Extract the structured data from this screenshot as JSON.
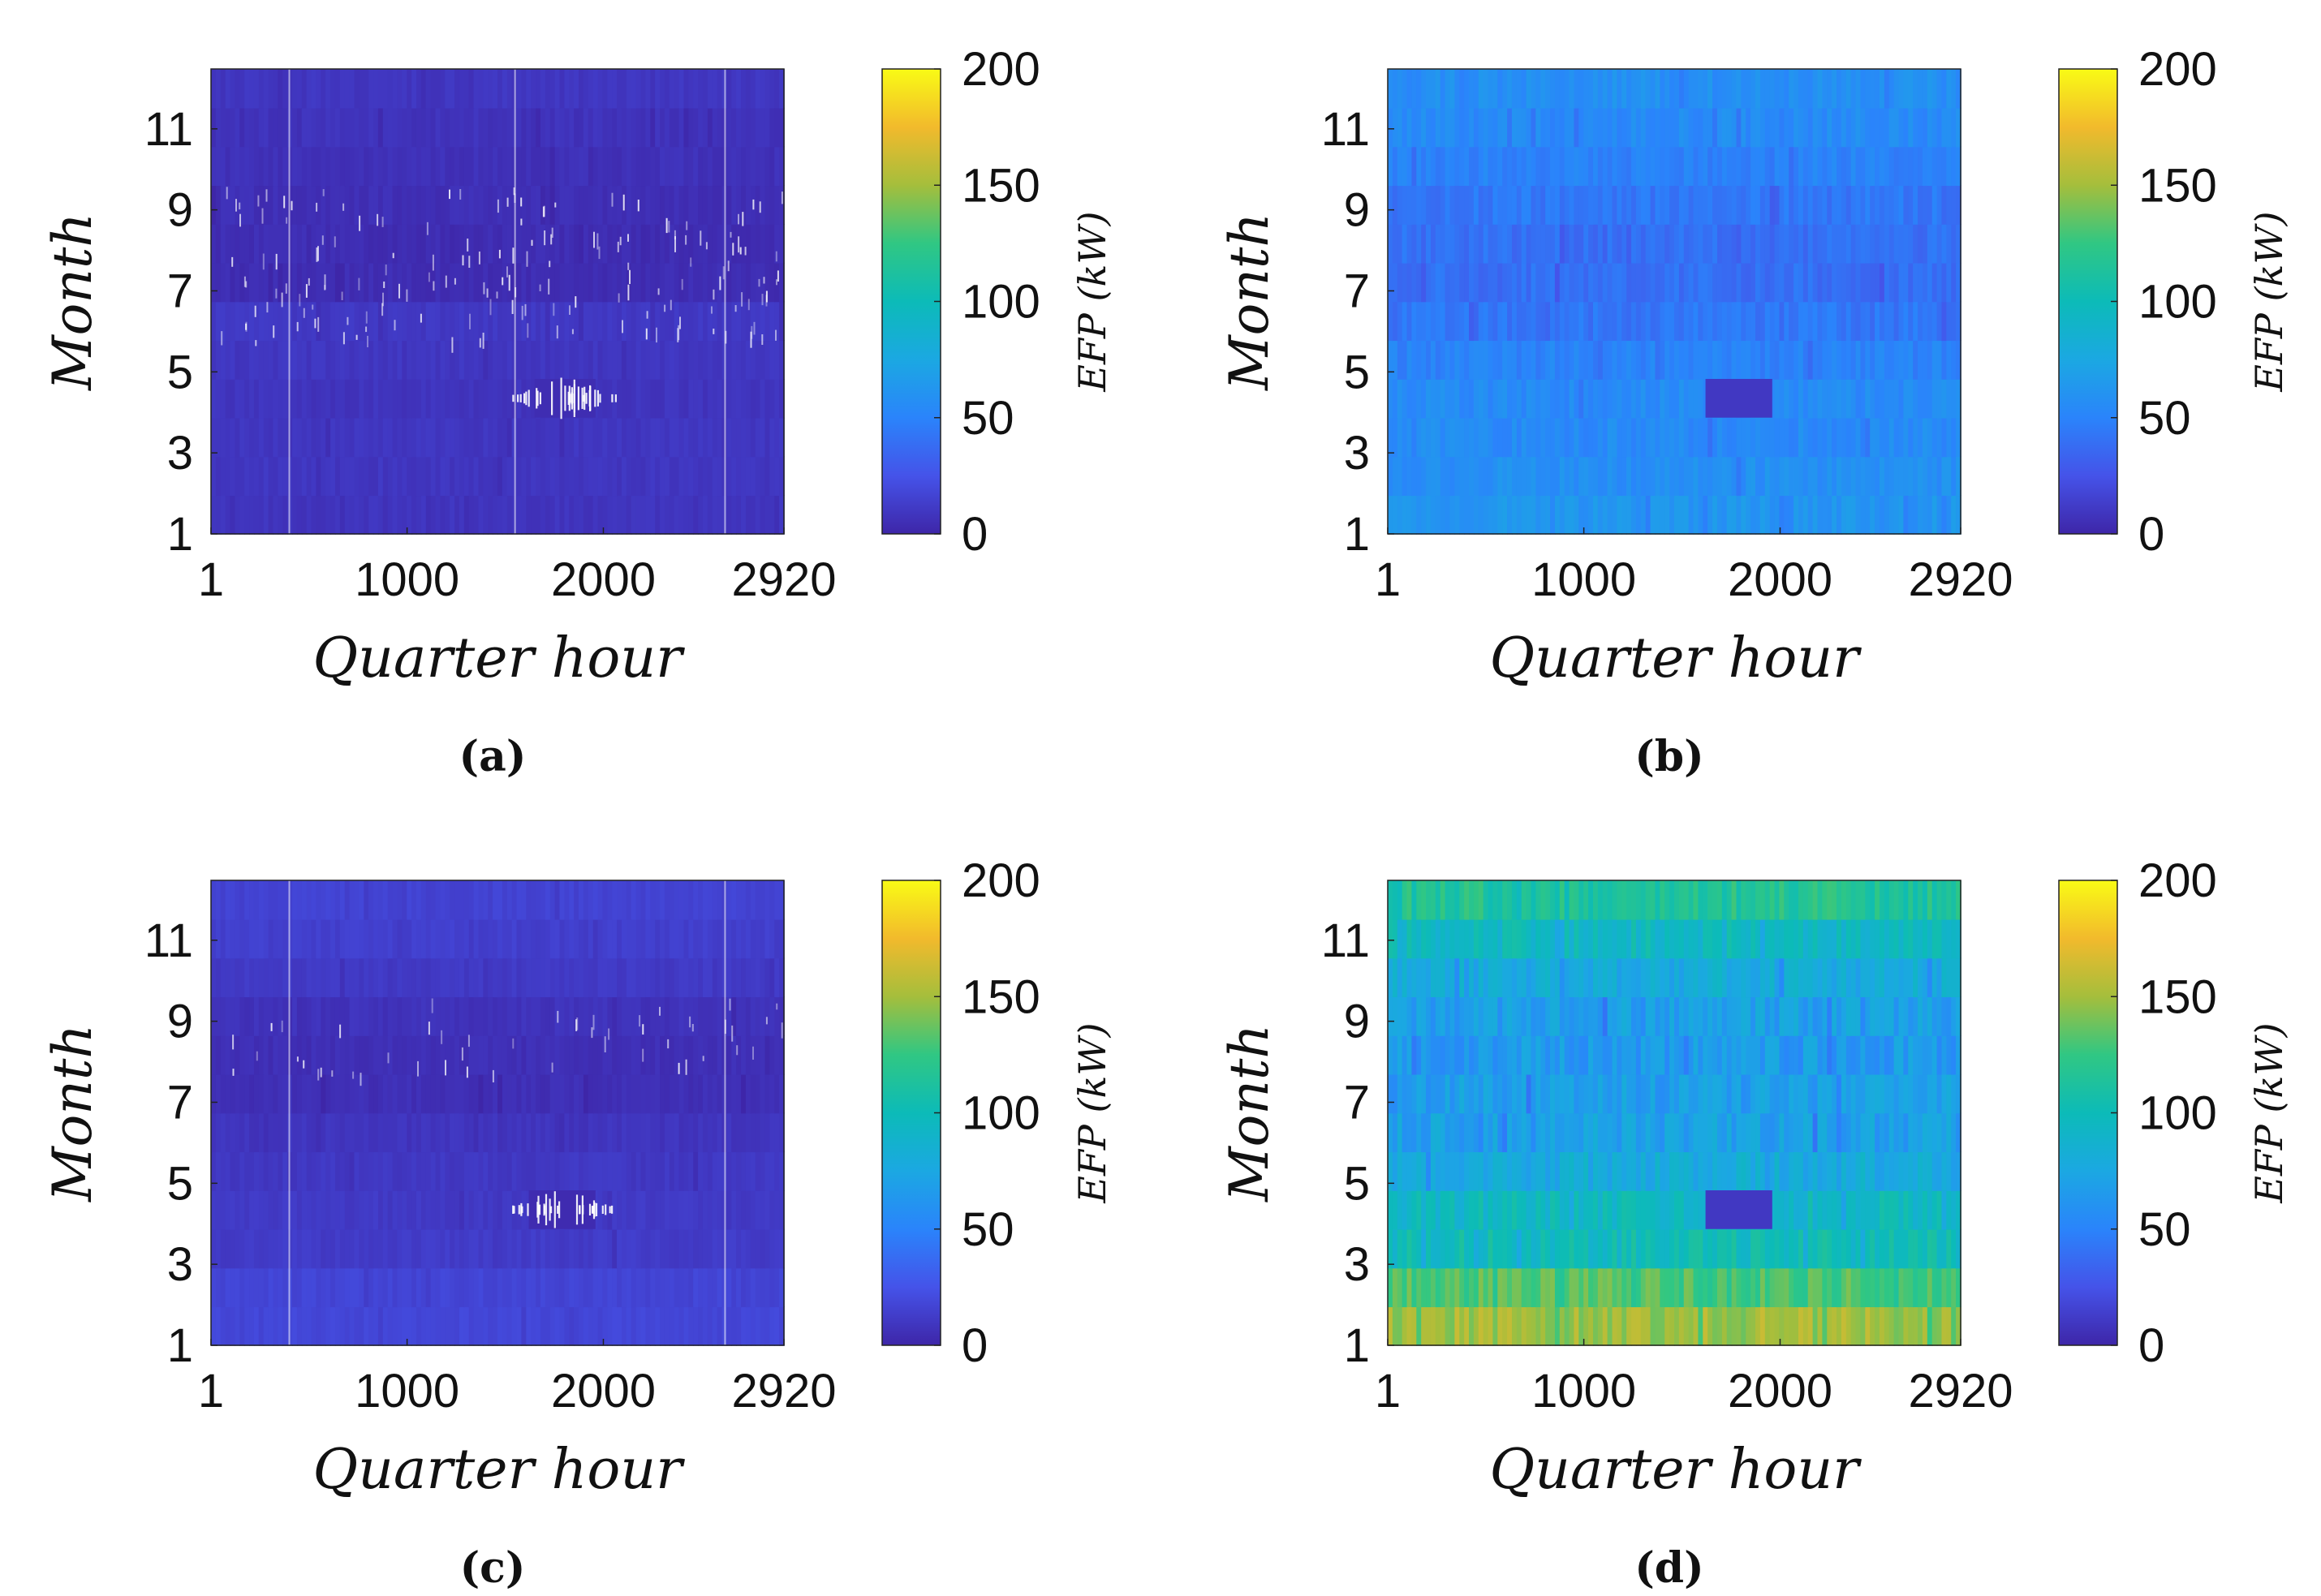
{
  "chart_data": [
    {
      "panel": "(a)",
      "type": "heatmap",
      "xlabel": "Quarter hour",
      "ylabel": "Month",
      "xticks": [
        "1",
        "1000",
        "2000",
        "2920"
      ],
      "xlim": [
        1,
        2920
      ],
      "yticks": [
        "1",
        "3",
        "5",
        "7",
        "9",
        "11"
      ],
      "ylim": [
        1,
        12
      ],
      "colorbar": {
        "label": "EFP (kW)",
        "ticks": [
          "0",
          "50",
          "100",
          "150",
          "200"
        ],
        "range": [
          0,
          200
        ]
      },
      "month_mean_kw": [
        8,
        9,
        9,
        8,
        9,
        10,
        4,
        4,
        5,
        6,
        7,
        9
      ],
      "variation": 2.5,
      "blank_hours": [
        400,
        1550,
        2620
      ],
      "sparkles": {
        "months": [
          6,
          7,
          8,
          9
        ],
        "count": 180
      },
      "anomaly": {
        "month": 4,
        "x_start": 1650,
        "x_end": 1960,
        "value": 4
      }
    },
    {
      "panel": "(b)",
      "type": "heatmap",
      "xlabel": "Quarter hour",
      "ylabel": "Month",
      "xticks": [
        "1",
        "1000",
        "2000",
        "2920"
      ],
      "xlim": [
        1,
        2920
      ],
      "yticks": [
        "1",
        "3",
        "5",
        "7",
        "9",
        "11"
      ],
      "ylim": [
        1,
        12
      ],
      "colorbar": {
        "label": "EFP (kW)",
        "ticks": [
          "0",
          "50",
          "100",
          "150",
          "200"
        ],
        "range": [
          0,
          200
        ]
      },
      "month_mean_kw": [
        62,
        58,
        55,
        55,
        50,
        43,
        40,
        40,
        44,
        50,
        55,
        58
      ],
      "variation": 7,
      "blank_hours": [],
      "sparkles": {
        "months": [],
        "count": 0
      },
      "anomaly": {
        "month": 4,
        "x_start": 1620,
        "x_end": 1960,
        "value": 10
      }
    },
    {
      "panel": "(c)",
      "type": "heatmap",
      "xlabel": "Quarter hour",
      "ylabel": "Month",
      "xticks": [
        "1",
        "1000",
        "2000",
        "2920"
      ],
      "xlim": [
        1,
        2920
      ],
      "yticks": [
        "1",
        "3",
        "5",
        "7",
        "9",
        "11"
      ],
      "ylim": [
        1,
        12
      ],
      "colorbar": {
        "label": "EFP (kW)",
        "ticks": [
          "0",
          "50",
          "100",
          "150",
          "200"
        ],
        "range": [
          0,
          200
        ]
      },
      "month_mean_kw": [
        18,
        17,
        12,
        11,
        10,
        8,
        5,
        5,
        7,
        11,
        14,
        16
      ],
      "variation": 2.5,
      "blank_hours": [
        400,
        2620
      ],
      "sparkles": {
        "months": [
          8,
          9
        ],
        "count": 50
      },
      "anomaly": {
        "month": 4,
        "x_start": 1620,
        "x_end": 1960,
        "value": 3
      }
    },
    {
      "panel": "(d)",
      "type": "heatmap",
      "xlabel": "Quarter hour",
      "ylabel": "Month",
      "xticks": [
        "1",
        "1000",
        "2000",
        "2920"
      ],
      "xlim": [
        1,
        2920
      ],
      "yticks": [
        "1",
        "3",
        "5",
        "7",
        "9",
        "11"
      ],
      "ylim": [
        1,
        12
      ],
      "colorbar": {
        "label": "EFP (kW)",
        "ticks": [
          "0",
          "50",
          "100",
          "150",
          "200"
        ],
        "range": [
          0,
          200
        ]
      },
      "month_mean_kw": [
        150,
        130,
        100,
        95,
        80,
        70,
        68,
        65,
        70,
        80,
        95,
        115
      ],
      "variation": 13,
      "blank_hours": [],
      "sparkles": {
        "months": [],
        "count": 0
      },
      "anomaly": {
        "month": 4,
        "x_start": 1620,
        "x_end": 1960,
        "value": 10
      }
    }
  ]
}
